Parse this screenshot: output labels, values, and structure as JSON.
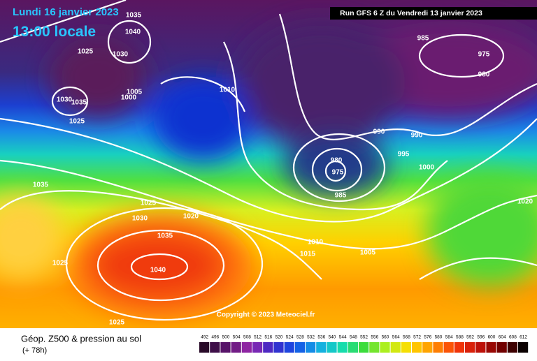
{
  "header": {
    "date": "Lundi 16 janvier 2023",
    "time": "13:00 locale",
    "run": "Run GFS 6 Z du Vendredi 13 janvier 2023"
  },
  "copyright": "Copyright © 2023 Meteociel.fr",
  "legend": {
    "title": "Géop. Z500 & pression au sol",
    "lead": "(+ 78h)",
    "labels": [
      492,
      496,
      500,
      504,
      508,
      512,
      516,
      520,
      524,
      528,
      532,
      536,
      540,
      544,
      548,
      552,
      556,
      560,
      564,
      568,
      572,
      576,
      580,
      584,
      588,
      592,
      596,
      600,
      604,
      608,
      612
    ]
  },
  "isobar_labels": [
    "1035",
    "1040",
    "1030",
    "1025",
    "1005",
    "1000",
    "1030",
    "1035",
    "1025",
    "1010",
    "985",
    "975",
    "980",
    "990",
    "990",
    "995",
    "1000",
    "980",
    "975",
    "985",
    "1035",
    "1025",
    "1030",
    "1020",
    "1035",
    "1040",
    "1010",
    "1015",
    "1005",
    "1020",
    "1025",
    "1025"
  ]
}
